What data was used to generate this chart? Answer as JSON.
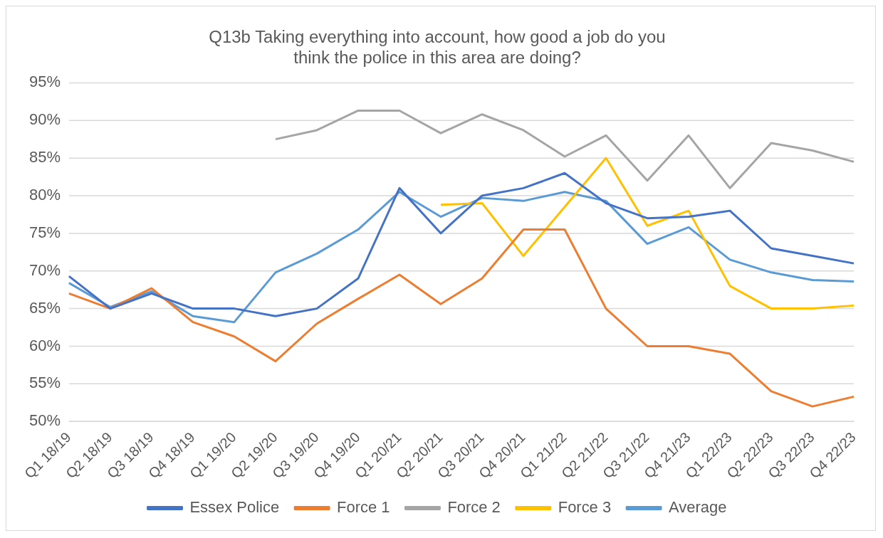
{
  "chart_data": {
    "type": "line",
    "title": "Q13b Taking everything into account, how good a job do you think the police in this area are doing?",
    "categories": [
      "Q1 18/19",
      "Q2 18/19",
      "Q3 18/19",
      "Q4 18/19",
      "Q1 19/20",
      "Q2 19/20",
      "Q3 19/20",
      "Q4 19/20",
      "Q1 20/21",
      "Q2 20/21",
      "Q3 20/21",
      "Q4 20/21",
      "Q1 21/22",
      "Q2 21/22",
      "Q3 21/22",
      "Q4 21/23",
      "Q1 22/23",
      "Q2 22/23",
      "Q3 22/23",
      "Q4 22/23"
    ],
    "series": [
      {
        "name": "Essex Police",
        "color": "#4472c4",
        "values": [
          69.3,
          65,
          67,
          65,
          65,
          64,
          65,
          69,
          81,
          75,
          80,
          81,
          83,
          79,
          77,
          77.2,
          78,
          73,
          72,
          71
        ]
      },
      {
        "name": "Force 1",
        "color": "#ed7d31",
        "values": [
          67,
          65,
          67.7,
          63.2,
          61.3,
          58,
          63,
          66.3,
          69.5,
          65.6,
          69,
          75.5,
          75.5,
          65,
          60,
          60,
          59,
          54,
          52,
          53.3
        ]
      },
      {
        "name": "Force 2",
        "color": "#a5a5a5",
        "values": [
          null,
          null,
          null,
          null,
          null,
          87.5,
          88.7,
          91.3,
          91.3,
          88.3,
          90.8,
          88.7,
          85.2,
          88,
          82,
          88,
          81,
          87,
          86,
          84.5
        ]
      },
      {
        "name": "Force 3",
        "color": "#ffc000",
        "values": [
          null,
          null,
          null,
          null,
          null,
          null,
          null,
          null,
          null,
          78.8,
          79,
          72,
          78.5,
          85,
          76,
          78,
          68,
          65,
          65,
          65.4
        ]
      },
      {
        "name": "Average",
        "color": "#5b9bd5",
        "values": [
          68.4,
          65.2,
          67.3,
          64,
          63.2,
          69.8,
          72.3,
          75.5,
          80.5,
          77.2,
          79.7,
          79.3,
          80.5,
          79.3,
          73.6,
          75.8,
          71.5,
          69.8,
          68.8,
          68.6
        ]
      }
    ],
    "ylim": [
      50,
      95
    ],
    "yticks": [
      {
        "value": 50,
        "label": "50%"
      },
      {
        "value": 55,
        "label": "55%"
      },
      {
        "value": 60,
        "label": "60%"
      },
      {
        "value": 65,
        "label": "65%"
      },
      {
        "value": 70,
        "label": "70%"
      },
      {
        "value": 75,
        "label": "75%"
      },
      {
        "value": 80,
        "label": "80%"
      },
      {
        "value": 85,
        "label": "85%"
      },
      {
        "value": 90,
        "label": "90%"
      },
      {
        "value": 95,
        "label": "95%"
      }
    ],
    "grid": "y",
    "legend": "bottom",
    "line_style": "solid"
  }
}
